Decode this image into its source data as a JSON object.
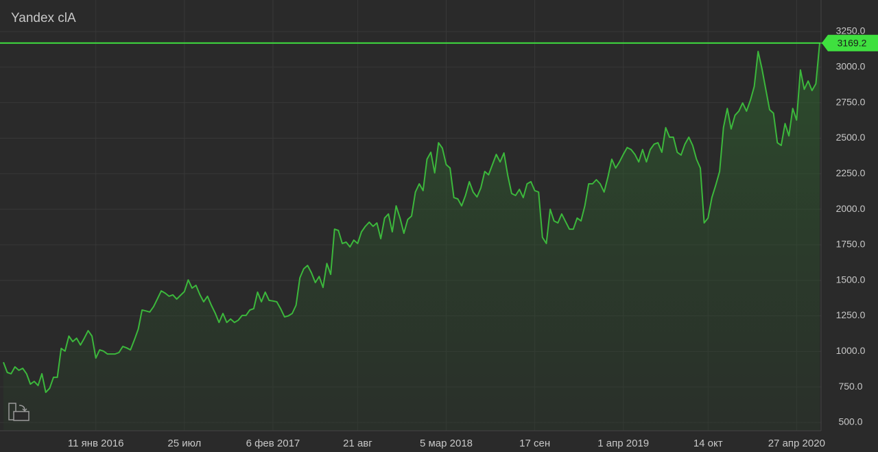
{
  "chart_data": {
    "type": "line",
    "title": "Yandex clA",
    "categories": [
      null,
      null,
      null,
      null,
      null,
      null,
      null,
      null,
      null,
      null,
      null,
      null,
      null,
      null,
      null,
      null,
      null,
      null,
      null,
      null,
      null,
      null,
      null,
      null,
      "11 янв 2016",
      null,
      null,
      null,
      null,
      null,
      null,
      null,
      null,
      null,
      null,
      null,
      null,
      null,
      null,
      null,
      null,
      null,
      null,
      null,
      null,
      null,
      null,
      "25 июл",
      null,
      null,
      null,
      null,
      null,
      null,
      null,
      null,
      null,
      null,
      null,
      null,
      null,
      null,
      null,
      null,
      null,
      null,
      null,
      null,
      null,
      null,
      "6 фев 2017",
      null,
      null,
      null,
      null,
      null,
      null,
      null,
      null,
      null,
      null,
      null,
      null,
      null,
      null,
      null,
      null,
      null,
      null,
      null,
      null,
      null,
      "21 авг",
      null,
      null,
      null,
      null,
      null,
      null,
      null,
      null,
      null,
      null,
      null,
      null,
      null,
      null,
      null,
      null,
      null,
      null,
      null,
      null,
      null,
      null,
      "5 мар 2018",
      null,
      null,
      null,
      null,
      null,
      null,
      null,
      null,
      null,
      null,
      null,
      null,
      null,
      null,
      null,
      null,
      null,
      null,
      null,
      null,
      null,
      null,
      "17 сен",
      null,
      null,
      null,
      null,
      null,
      null,
      null,
      null,
      null,
      null,
      null,
      null,
      null,
      null,
      null,
      null,
      null,
      null,
      null,
      null,
      null,
      null,
      "1 апр 2019",
      null,
      null,
      null,
      null,
      null,
      null,
      null,
      null,
      null,
      null,
      null,
      null,
      null,
      null,
      null,
      null,
      null,
      null,
      null,
      null,
      null,
      "14 окт",
      null,
      null,
      null,
      null,
      null,
      null,
      null,
      null,
      null,
      null,
      null,
      null,
      null,
      null,
      null,
      null,
      null,
      null,
      null,
      null,
      null,
      null,
      "27 апр 2020",
      null,
      null,
      null,
      null,
      null,
      null
    ],
    "values": [
      924,
      852,
      843,
      891,
      867,
      881,
      843,
      770,
      789,
      760,
      843,
      712,
      741,
      818,
      818,
      1021,
      1002,
      1108,
      1069,
      1093,
      1045,
      1093,
      1146,
      1108,
      953,
      1011,
      1002,
      982,
      982,
      982,
      992,
      1035,
      1025,
      1011,
      1080,
      1156,
      1291,
      1285,
      1277,
      1315,
      1370,
      1426,
      1410,
      1388,
      1398,
      1368,
      1395,
      1421,
      1503,
      1445,
      1465,
      1400,
      1349,
      1388,
      1325,
      1270,
      1204,
      1267,
      1204,
      1228,
      1204,
      1220,
      1253,
      1253,
      1291,
      1301,
      1417,
      1349,
      1417,
      1359,
      1355,
      1349,
      1300,
      1243,
      1250,
      1267,
      1325,
      1518,
      1581,
      1605,
      1552,
      1484,
      1527,
      1450,
      1619,
      1542,
      1860,
      1851,
      1759,
      1769,
      1735,
      1783,
      1759,
      1841,
      1880,
      1909,
      1880,
      1904,
      1793,
      1938,
      1967,
      1841,
      2024,
      1938,
      1831,
      1928,
      1952,
      2121,
      2179,
      2131,
      2352,
      2401,
      2256,
      2468,
      2430,
      2314,
      2290,
      2082,
      2073,
      2024,
      2097,
      2194,
      2121,
      2087,
      2150,
      2266,
      2242,
      2314,
      2386,
      2333,
      2396,
      2237,
      2111,
      2097,
      2140,
      2082,
      2179,
      2194,
      2131,
      2121,
      1802,
      1759,
      2000,
      1918,
      1904,
      1967,
      1913,
      1860,
      1860,
      1938,
      1918,
      2024,
      2179,
      2179,
      2208,
      2179,
      2121,
      2227,
      2352,
      2290,
      2333,
      2386,
      2434,
      2420,
      2386,
      2333,
      2420,
      2333,
      2420,
      2458,
      2468,
      2401,
      2574,
      2507,
      2507,
      2401,
      2381,
      2458,
      2507,
      2449,
      2352,
      2290,
      1904,
      1938,
      2082,
      2169,
      2266,
      2574,
      2709,
      2565,
      2661,
      2690,
      2748,
      2690,
      2767,
      2864,
      3110,
      2989,
      2844,
      2700,
      2676,
      2468,
      2449,
      2603,
      2516,
      2709,
      2627,
      2980,
      2844,
      2902,
      2835,
      2883,
      3169.2
    ],
    "color": "#3cb83c",
    "ylim": [
      442,
      3472
    ],
    "yticks": [
      {
        "value": 500,
        "label": "500.0"
      },
      {
        "value": 750,
        "label": "750.0"
      },
      {
        "value": 1000,
        "label": "1000.0"
      },
      {
        "value": 1250,
        "label": "1250.0"
      },
      {
        "value": 1500,
        "label": "1500.0"
      },
      {
        "value": 1750,
        "label": "1750.0"
      },
      {
        "value": 2000,
        "label": "2000.0"
      },
      {
        "value": 2250,
        "label": "2250.0"
      },
      {
        "value": 2500,
        "label": "2500.0"
      },
      {
        "value": 2750,
        "label": "2750.0"
      },
      {
        "value": 3000,
        "label": "3000.0"
      },
      {
        "value": 3250,
        "label": "3250.0"
      }
    ],
    "grid": true
  }
}
